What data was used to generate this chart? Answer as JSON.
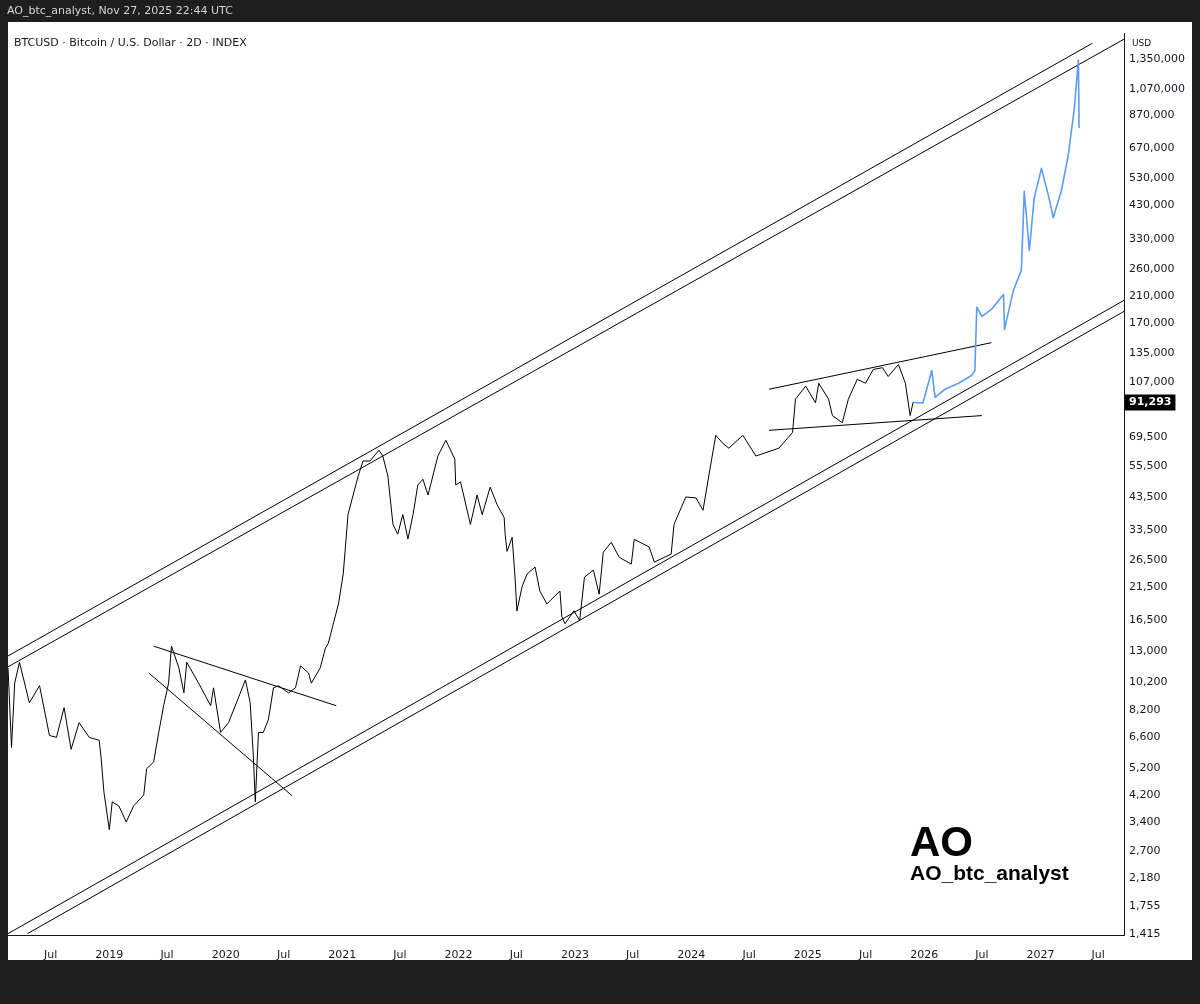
{
  "chart_data": {
    "type": "line",
    "title": "BTCUSD · Bitcoin / U.S. Dollar · 2D · INDEX",
    "subtitle": "AO_btc_analyst, Nov 27, 2025 22:44 UTC",
    "ylabel": "USD",
    "annotations": [
      "AO",
      "AO_btc_analyst",
      "91,293"
    ],
    "log": true,
    "legend": false,
    "grid": false,
    "xlim": [
      "2018-02-17",
      "2027-09-20"
    ],
    "xticks": [
      {
        "value": "2018-07-01",
        "label": "Jul"
      },
      {
        "value": "2019-01-01",
        "label": "2019"
      },
      {
        "value": "2019-07-01",
        "label": "Jul"
      },
      {
        "value": "2020-01-01",
        "label": "2020"
      },
      {
        "value": "2020-07-01",
        "label": "Jul"
      },
      {
        "value": "2021-01-01",
        "label": "2021"
      },
      {
        "value": "2021-07-01",
        "label": "Jul"
      },
      {
        "value": "2022-01-01",
        "label": "2022"
      },
      {
        "value": "2022-07-01",
        "label": "Jul"
      },
      {
        "value": "2023-01-01",
        "label": "2023"
      },
      {
        "value": "2023-07-01",
        "label": "Jul"
      },
      {
        "value": "2024-01-01",
        "label": "2024"
      },
      {
        "value": "2024-07-01",
        "label": "Jul"
      },
      {
        "value": "2025-01-01",
        "label": "2025"
      },
      {
        "value": "2025-07-01",
        "label": "Jul"
      },
      {
        "value": "2026-01-01",
        "label": "2026"
      },
      {
        "value": "2026-07-01",
        "label": "Jul"
      },
      {
        "value": "2027-01-01",
        "label": "2027"
      },
      {
        "value": "2027-07-01",
        "label": "Jul"
      }
    ],
    "ylim": [
      1400,
      1650000
    ],
    "yticks": [
      {
        "value": 1415,
        "label": "1,415"
      },
      {
        "value": 1755,
        "label": "1,755"
      },
      {
        "value": 2180,
        "label": "2,180"
      },
      {
        "value": 2700,
        "label": "2,700"
      },
      {
        "value": 3400,
        "label": "3,400"
      },
      {
        "value": 4200,
        "label": "4,200"
      },
      {
        "value": 5200,
        "label": "5,200"
      },
      {
        "value": 6600,
        "label": "6,600"
      },
      {
        "value": 8200,
        "label": "8,200"
      },
      {
        "value": 10200,
        "label": "10,200"
      },
      {
        "value": 13000,
        "label": "13,000"
      },
      {
        "value": 16500,
        "label": "16,500"
      },
      {
        "value": 21500,
        "label": "21,500"
      },
      {
        "value": 26500,
        "label": "26,500"
      },
      {
        "value": 33500,
        "label": "33,500"
      },
      {
        "value": 43500,
        "label": "43,500"
      },
      {
        "value": 55500,
        "label": "55,500"
      },
      {
        "value": 69500,
        "label": "69,500"
      },
      {
        "value": 107000,
        "label": "107,000"
      },
      {
        "value": 135000,
        "label": "135,000"
      },
      {
        "value": 170000,
        "label": "170,000"
      },
      {
        "value": 210000,
        "label": "210,000"
      },
      {
        "value": 260000,
        "label": "260,000"
      },
      {
        "value": 330000,
        "label": "330,000"
      },
      {
        "value": 430000,
        "label": "430,000"
      },
      {
        "value": 530000,
        "label": "530,000"
      },
      {
        "value": 670000,
        "label": "670,000"
      },
      {
        "value": 870000,
        "label": "870,000"
      },
      {
        "value": 1070000,
        "label": "1,070,000"
      },
      {
        "value": 1350000,
        "label": "1,350,000"
      }
    ],
    "series": [
      {
        "color": "#000000",
        "x": [
          "2018-02-17",
          "2018-02-28",
          "2018-03-10",
          "2018-03-25",
          "2018-04-25",
          "2018-05-27",
          "2018-06-27",
          "2018-07-19",
          "2018-08-12",
          "2018-09-03",
          "2018-09-28",
          "2018-10-30",
          "2018-11-30",
          "2018-12-06",
          "2018-12-15",
          "2019-01-01",
          "2019-01-10",
          "2019-01-31",
          "2019-02-23",
          "2019-03-18",
          "2019-04-19",
          "2019-04-28",
          "2019-05-20",
          "2019-06-05",
          "2019-06-21",
          "2019-07-06",
          "2019-07-15",
          "2019-08-07",
          "2019-08-23",
          "2019-09-01",
          "2019-10-08",
          "2019-11-15",
          "2019-11-24",
          "2019-12-16",
          "2020-01-10",
          "2020-02-10",
          "2020-03-03",
          "2020-03-18",
          "2020-03-28",
          "2020-04-03",
          "2020-04-13",
          "2020-04-28",
          "2020-05-14",
          "2020-05-30",
          "2020-06-15",
          "2020-07-16",
          "2020-08-07",
          "2020-08-23",
          "2020-09-17",
          "2020-09-26",
          "2020-10-24",
          "2020-11-09",
          "2020-11-18",
          "2020-12-20",
          "2021-01-04",
          "2021-01-19",
          "2021-02-04",
          "2021-02-20",
          "2021-03-07",
          "2021-03-29",
          "2021-04-26",
          "2021-05-08",
          "2021-05-24",
          "2021-06-09",
          "2021-06-24",
          "2021-07-10",
          "2021-07-26",
          "2021-08-11",
          "2021-08-26",
          "2021-09-11",
          "2021-09-27",
          "2021-10-28",
          "2021-11-22",
          "2021-12-20",
          "2021-12-23",
          "2022-01-07",
          "2022-02-07",
          "2022-02-28",
          "2022-03-16",
          "2022-04-10",
          "2022-05-02",
          "2022-05-24",
          "2022-05-27",
          "2022-06-02",
          "2022-06-18",
          "2022-06-27",
          "2022-07-03",
          "2022-07-19",
          "2022-08-04",
          "2022-08-29",
          "2022-09-13",
          "2022-10-05",
          "2022-11-15",
          "2022-11-21",
          "2022-12-01",
          "2022-12-29",
          "2023-01-16",
          "2023-01-31",
          "2023-02-28",
          "2023-03-18",
          "2023-03-31",
          "2023-04-25",
          "2023-05-20",
          "2023-06-27",
          "2023-07-06",
          "2023-08-22",
          "2023-09-07",
          "2023-10-30",
          "2023-11-08",
          "2023-12-15",
          "2024-01-16",
          "2024-02-07",
          "2024-02-25",
          "2024-03-18",
          "2024-04-09",
          "2024-04-28",
          "2024-06-11",
          "2024-07-22",
          "2024-10-02",
          "2024-11-14",
          "2024-11-23",
          "2024-12-25",
          "2025-01-25",
          "2025-02-04",
          "2025-03-07",
          "2025-03-19",
          "2025-04-19",
          "2025-05-08",
          "2025-06-05",
          "2025-07-01",
          "2025-07-25",
          "2025-08-23",
          "2025-09-10",
          "2025-10-12",
          "2025-11-03",
          "2025-11-18",
          "2025-11-27"
        ],
        "values": [
          11400,
          6100,
          10100,
          11900,
          8660,
          9900,
          6700,
          6600,
          8330,
          6010,
          7410,
          6600,
          6450,
          5660,
          4300,
          3200,
          3980,
          3850,
          3400,
          3850,
          4200,
          5160,
          5440,
          6860,
          8530,
          10100,
          13500,
          11400,
          9360,
          11900,
          10100,
          8460,
          9730,
          6860,
          7410,
          9000,
          10360,
          8660,
          5660,
          3980,
          6860,
          6860,
          7570,
          9730,
          9900,
          9360,
          9730,
          11570,
          10930,
          10100,
          11400,
          13300,
          13800,
          18800,
          23800,
          37900,
          44200,
          51300,
          57700,
          57700,
          62800,
          60000,
          51300,
          35100,
          32500,
          37900,
          31300,
          37900,
          47800,
          50000,
          44200,
          60000,
          67900,
          58600,
          47800,
          49000,
          35100,
          44200,
          37900,
          47000,
          40900,
          37000,
          32500,
          28400,
          31700,
          23200,
          17800,
          21500,
          23800,
          25100,
          20800,
          18800,
          20800,
          17000,
          16100,
          17800,
          16500,
          23200,
          24500,
          20300,
          28200,
          30500,
          27100,
          25700,
          31200,
          29400,
          26100,
          27800,
          35100,
          43500,
          43200,
          39200,
          51300,
          70600,
          66300,
          63800,
          70600,
          60000,
          63800,
          72200,
          93700,
          103800,
          91000,
          106200,
          93700,
          82400,
          77900,
          93700,
          109500,
          106200,
          118300,
          120000,
          112000,
          123000,
          106200,
          82400,
          91293
        ]
      },
      {
        "color": "#5b9cf6",
        "x": [
          "2025-11-27",
          "2025-12-28",
          "2026-01-25",
          "2026-02-04",
          "2026-03-07",
          "2026-04-19",
          "2026-05-30",
          "2026-06-09",
          "2026-06-15",
          "2026-07-01",
          "2026-07-31",
          "2026-09-07",
          "2026-09-10",
          "2026-10-08",
          "2026-11-02",
          "2026-11-11",
          "2026-11-27",
          "2026-12-12",
          "2027-01-04",
          "2027-01-28",
          "2027-02-10",
          "2027-03-07",
          "2027-03-29",
          "2027-04-17",
          "2027-04-30",
          "2027-05-02"
        ],
        "values": [
          91293,
          91000,
          117300,
          95100,
          101300,
          106200,
          113000,
          117300,
          192800,
          179500,
          189600,
          213000,
          162000,
          220000,
          258000,
          479000,
          301000,
          453000,
          573000,
          453000,
          389000,
          479000,
          634000,
          916000,
          1340000,
          786000
        ]
      },
      {
        "color": "#000000",
        "x": [
          "2018-02-17",
          "2027-06-13"
        ],
        "values": [
          12500,
          1530000
        ]
      },
      {
        "color": "#000000",
        "x": [
          "2018-02-17",
          "2027-09-20"
        ],
        "values": [
          11480,
          1580000
        ]
      },
      {
        "color": "#000000",
        "x": [
          "2018-02-17",
          "2027-09-20"
        ],
        "values": [
          1415,
          203500
        ]
      },
      {
        "color": "#000000",
        "x": [
          "2018-04-19",
          "2027-09-20"
        ],
        "values": [
          1415,
          186600
        ]
      },
      {
        "color": "#000000",
        "x": [
          "2019-05-20",
          "2020-12-13"
        ],
        "values": [
          13500,
          8460
        ]
      },
      {
        "color": "#000000",
        "x": [
          "2019-05-05",
          "2020-07-28"
        ],
        "values": [
          10930,
          4170
        ]
      },
      {
        "color": "#000000",
        "x": [
          "2024-09-01",
          "2026-07-31"
        ],
        "values": [
          101300,
          146000
        ]
      },
      {
        "color": "#000000",
        "x": [
          "2024-09-01",
          "2026-07-01"
        ],
        "values": [
          73400,
          82400
        ]
      }
    ]
  }
}
